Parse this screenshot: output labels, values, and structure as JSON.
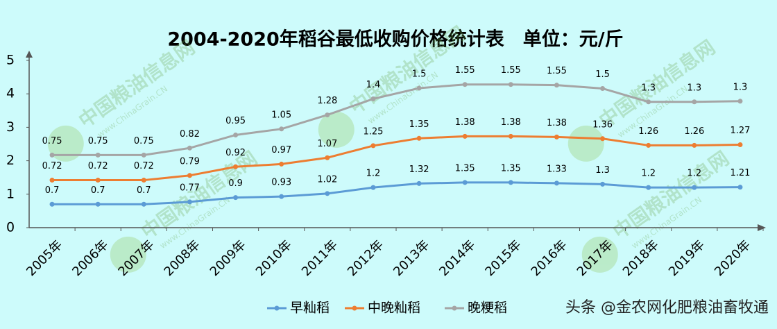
{
  "chart_data": {
    "type": "line",
    "stacked": true,
    "title": "2004-2020年稻谷最低收购价格统计表　单位：元/斤",
    "categories": [
      "2005年",
      "2006年",
      "2007年",
      "2008年",
      "2009年",
      "2010年",
      "2011年",
      "2012年",
      "2013年",
      "2014年",
      "2015年",
      "2016年",
      "2017年",
      "2018年",
      "2019年",
      "2020年"
    ],
    "series": [
      {
        "name": "早籼稻",
        "color": "#5b9bd5",
        "values": [
          0.7,
          0.7,
          0.7,
          0.77,
          0.9,
          0.93,
          1.02,
          1.2,
          1.32,
          1.35,
          1.35,
          1.33,
          1.3,
          1.2,
          1.2,
          1.21
        ]
      },
      {
        "name": "中晚籼稻",
        "color": "#ed7d31",
        "values": [
          0.72,
          0.72,
          0.72,
          0.79,
          0.92,
          0.97,
          1.07,
          1.25,
          1.35,
          1.38,
          1.38,
          1.38,
          1.36,
          1.26,
          1.26,
          1.27
        ]
      },
      {
        "name": "晚粳稻",
        "color": "#a5a5a5",
        "values": [
          0.75,
          0.75,
          0.75,
          0.82,
          0.95,
          1.05,
          1.28,
          1.4,
          1.5,
          1.55,
          1.55,
          1.55,
          1.5,
          1.3,
          1.3,
          1.3
        ]
      }
    ],
    "ylim": [
      0,
      5
    ],
    "yticks": [
      0,
      1,
      2,
      3,
      4,
      5
    ],
    "grid": false,
    "legend": "bottom",
    "watermarks": [
      "中国粮油信息网",
      "www.ChinaGrain.CN"
    ],
    "credit": "头条 @金农网化肥粮油畜牧通"
  }
}
